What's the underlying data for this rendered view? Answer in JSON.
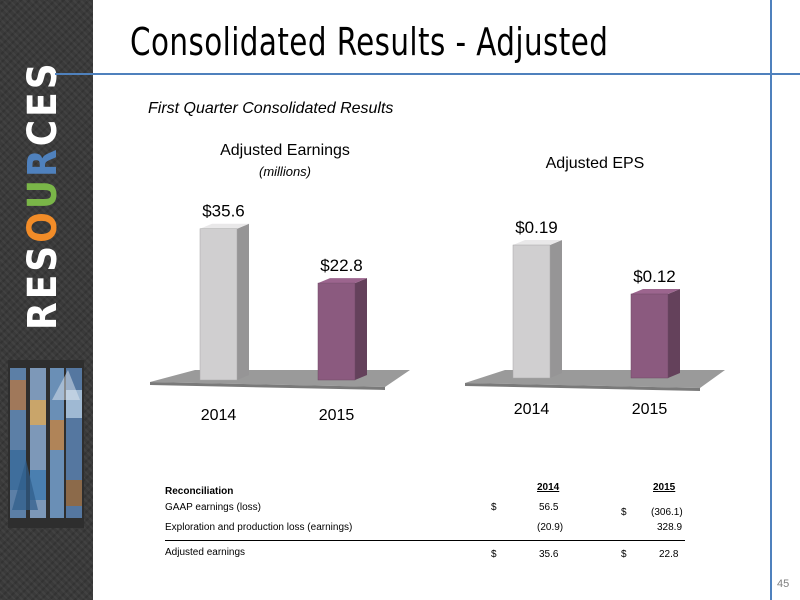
{
  "slide": {
    "title": "Consolidated Results - Adjusted",
    "subtitle": "First Quarter Consolidated Results",
    "page_number": "45"
  },
  "brand": {
    "letters": [
      {
        "ch": "R",
        "color": "#ffffff"
      },
      {
        "ch": "E",
        "color": "#ffffff"
      },
      {
        "ch": "S",
        "color": "#ffffff"
      },
      {
        "ch": "O",
        "color": "#f28c28"
      },
      {
        "ch": "U",
        "color": "#7ab648"
      },
      {
        "ch": "R",
        "color": "#4f81bd"
      },
      {
        "ch": "C",
        "color": "#ffffff"
      },
      {
        "ch": "E",
        "color": "#ffffff"
      },
      {
        "ch": "S",
        "color": "#ffffff"
      }
    ]
  },
  "chart_data": [
    {
      "type": "bar",
      "title": "Adjusted Earnings",
      "subtitle": "(millions)",
      "categories": [
        "2014",
        "2015"
      ],
      "values": [
        35.6,
        22.8
      ],
      "data_labels": [
        "$35.6",
        "$22.8"
      ],
      "colors": [
        "#d0cfd0",
        "#8b5a7f"
      ],
      "ylim": [
        0,
        40
      ]
    },
    {
      "type": "bar",
      "title": "Adjusted EPS",
      "categories": [
        "2014",
        "2015"
      ],
      "values": [
        0.19,
        0.12
      ],
      "data_labels": [
        "$0.19",
        "$0.12"
      ],
      "colors": [
        "#d0cfd0",
        "#8b5a7f"
      ],
      "ylim": [
        0,
        0.25
      ]
    }
  ],
  "reconciliation": {
    "header": "Reconciliation",
    "col_2014": "2014",
    "col_2015": "2015",
    "rows": [
      {
        "label": "GAAP earnings (loss)",
        "cur_2014": "$",
        "v2014": "56.5",
        "cur_2015": "$",
        "v2015": "(306.1)"
      },
      {
        "label": "Exploration and production loss (earnings)",
        "cur_2014": "",
        "v2014": "(20.9)",
        "cur_2015": "",
        "v2015": "328.9"
      },
      {
        "label": "Adjusted earnings",
        "cur_2014": "$",
        "v2014": "35.6",
        "cur_2015": "$",
        "v2015": "22.8"
      }
    ]
  }
}
